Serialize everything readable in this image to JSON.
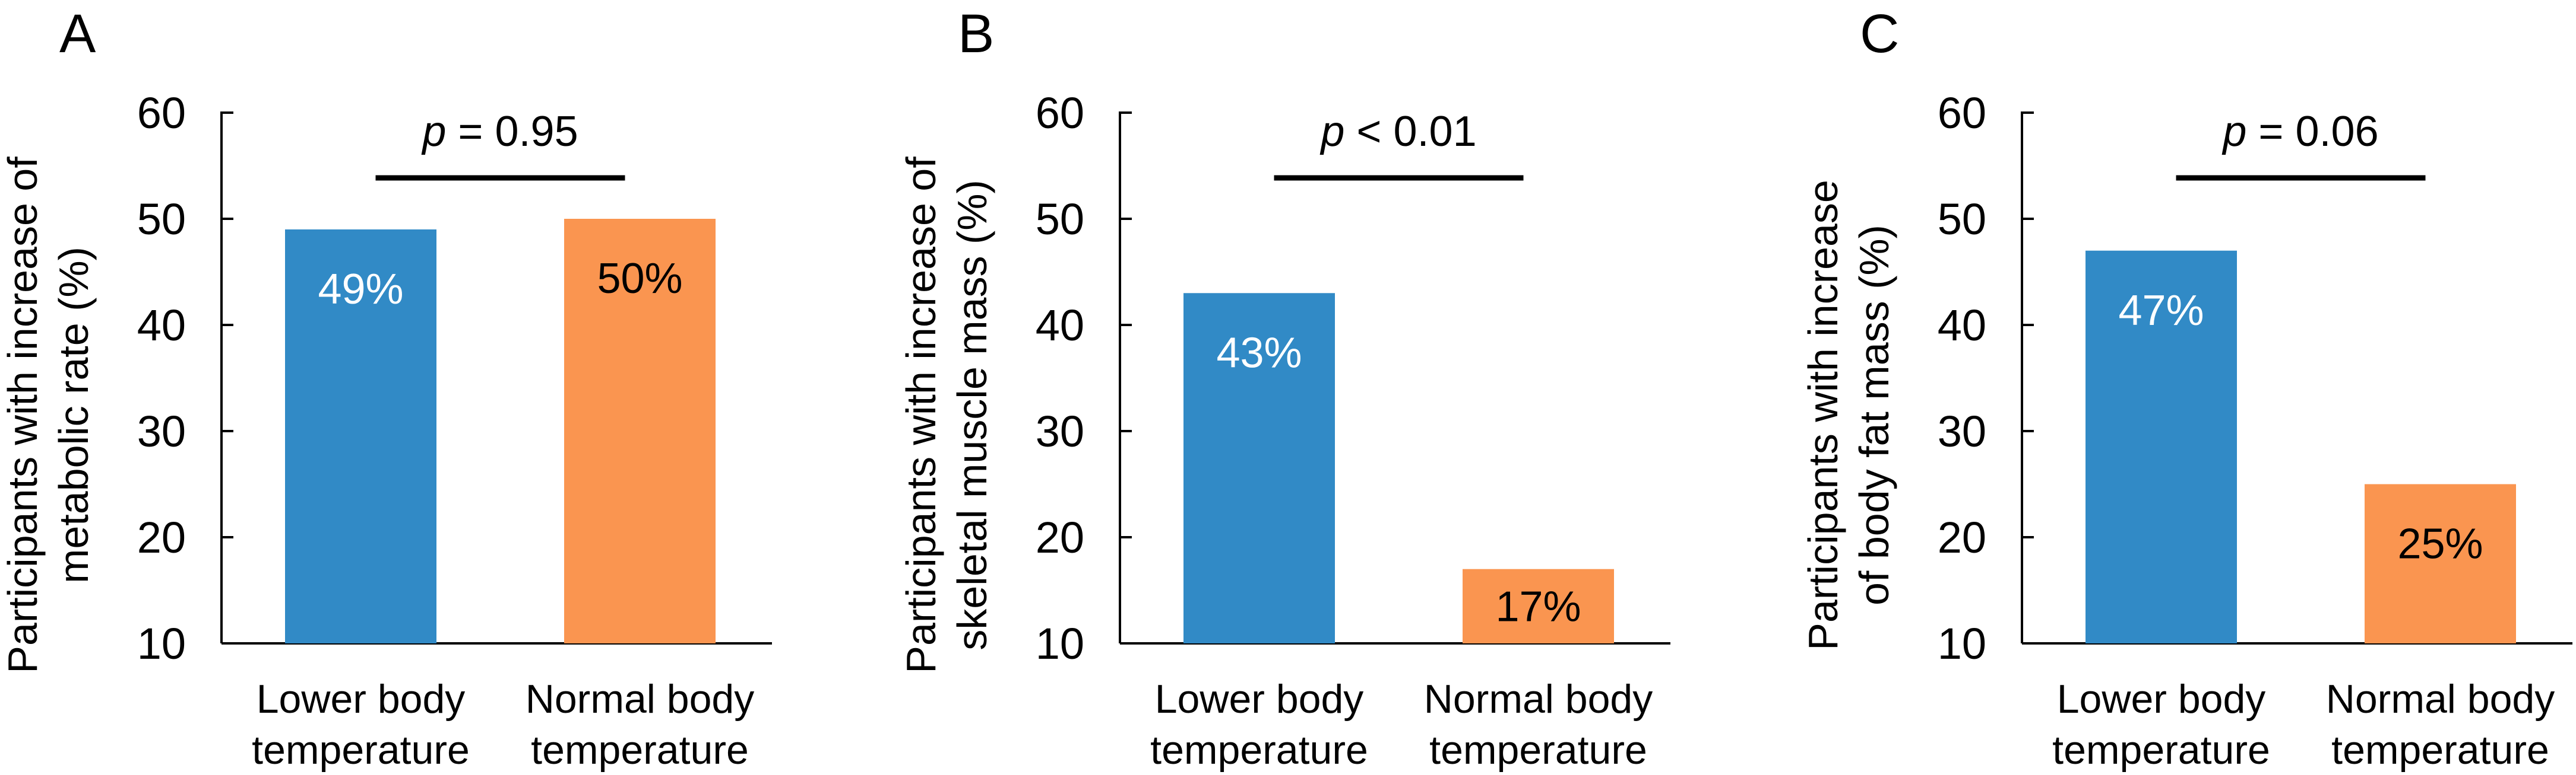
{
  "figure": {
    "background": "#ffffff",
    "text_color": "#000000",
    "line_color": "#000000",
    "bar_color_lower": "#318AC6",
    "bar_color_normal": "#FA9550"
  },
  "chart_data": [
    {
      "type": "bar",
      "panel_label": "A",
      "ylabel_lines": [
        "Participants with increase of",
        "metabolic rate (%)"
      ],
      "categories": [
        [
          "Lower body",
          "temperature"
        ],
        [
          "Normal body",
          "temperature"
        ]
      ],
      "values": [
        49,
        50
      ],
      "bar_labels": [
        "49%",
        "50%"
      ],
      "bar_label_colors": [
        "#ffffff",
        "#000000"
      ],
      "bar_colors": [
        "#318AC6",
        "#FA9550"
      ],
      "p_label": "p = 0.95",
      "ylim": [
        10,
        60
      ],
      "yticks": [
        10,
        20,
        30,
        40,
        50,
        60
      ],
      "grid": false,
      "legend": "none"
    },
    {
      "type": "bar",
      "panel_label": "B",
      "ylabel_lines": [
        "Participants with increase of",
        "skeletal muscle mass (%)"
      ],
      "categories": [
        [
          "Lower body",
          "temperature"
        ],
        [
          "Normal body",
          "temperature"
        ]
      ],
      "values": [
        43,
        17
      ],
      "bar_labels": [
        "43%",
        "17%"
      ],
      "bar_label_colors": [
        "#ffffff",
        "#000000"
      ],
      "bar_colors": [
        "#318AC6",
        "#FA9550"
      ],
      "p_label": "p < 0.01",
      "ylim": [
        10,
        60
      ],
      "yticks": [
        10,
        20,
        30,
        40,
        50,
        60
      ],
      "grid": false,
      "legend": "none"
    },
    {
      "type": "bar",
      "panel_label": "C",
      "ylabel_lines": [
        "Participants with increase",
        "of body fat mass (%)"
      ],
      "categories": [
        [
          "Lower body",
          "temperature"
        ],
        [
          "Normal body",
          "temperature"
        ]
      ],
      "values": [
        47,
        25
      ],
      "bar_labels": [
        "47%",
        "25%"
      ],
      "bar_label_colors": [
        "#ffffff",
        "#000000"
      ],
      "bar_colors": [
        "#318AC6",
        "#FA9550"
      ],
      "p_label": "p = 0.06",
      "ylim": [
        10,
        60
      ],
      "yticks": [
        10,
        20,
        30,
        40,
        50,
        60
      ],
      "grid": false,
      "legend": "none"
    }
  ]
}
